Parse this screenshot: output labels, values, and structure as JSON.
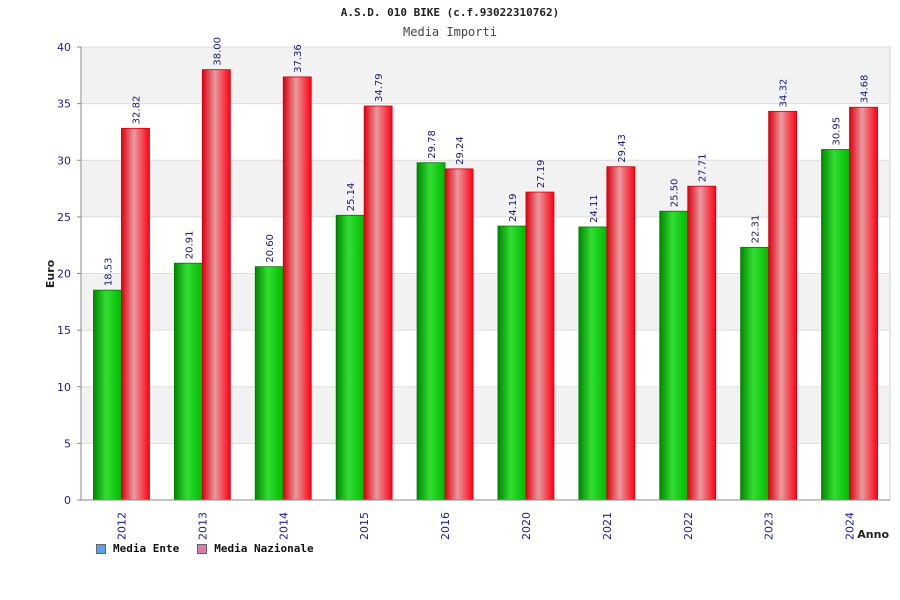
{
  "chart_data": {
    "type": "bar",
    "title": "A.S.D. 010 BIKE (c.f.93022310762)",
    "subtitle": "Media Importi",
    "ylabel": "Euro",
    "xlabel": "Anno",
    "ylim": [
      0,
      40
    ],
    "yticks": [
      0,
      5,
      10,
      15,
      20,
      25,
      30,
      35,
      40
    ],
    "grid": true,
    "legend_position": "bottom-left",
    "categories": [
      "2012",
      "2013",
      "2014",
      "2015",
      "2016",
      "2020",
      "2021",
      "2022",
      "2023",
      "2024"
    ],
    "series": [
      {
        "name": "Media Ente",
        "legend_color": "#5aa0e8",
        "bar_color": "#00c000",
        "values": [
          18.53,
          20.91,
          20.6,
          25.14,
          29.78,
          24.19,
          24.11,
          25.5,
          22.31,
          30.95
        ],
        "labels": [
          "18.53",
          "20.91",
          "20.60",
          "25.14",
          "29.78",
          "24.19",
          "24.11",
          "25.50",
          "22.31",
          "30.95"
        ]
      },
      {
        "name": "Media Nazionale",
        "legend_color": "#e07aa8",
        "bar_color": "#f01020",
        "values": [
          32.82,
          38.0,
          37.36,
          34.79,
          29.24,
          27.19,
          29.43,
          27.71,
          34.32,
          34.68
        ],
        "labels": [
          "32.82",
          "38.00",
          "37.36",
          "34.79",
          "29.24",
          "27.19",
          "29.43",
          "27.71",
          "34.32",
          "34.68"
        ]
      }
    ]
  }
}
